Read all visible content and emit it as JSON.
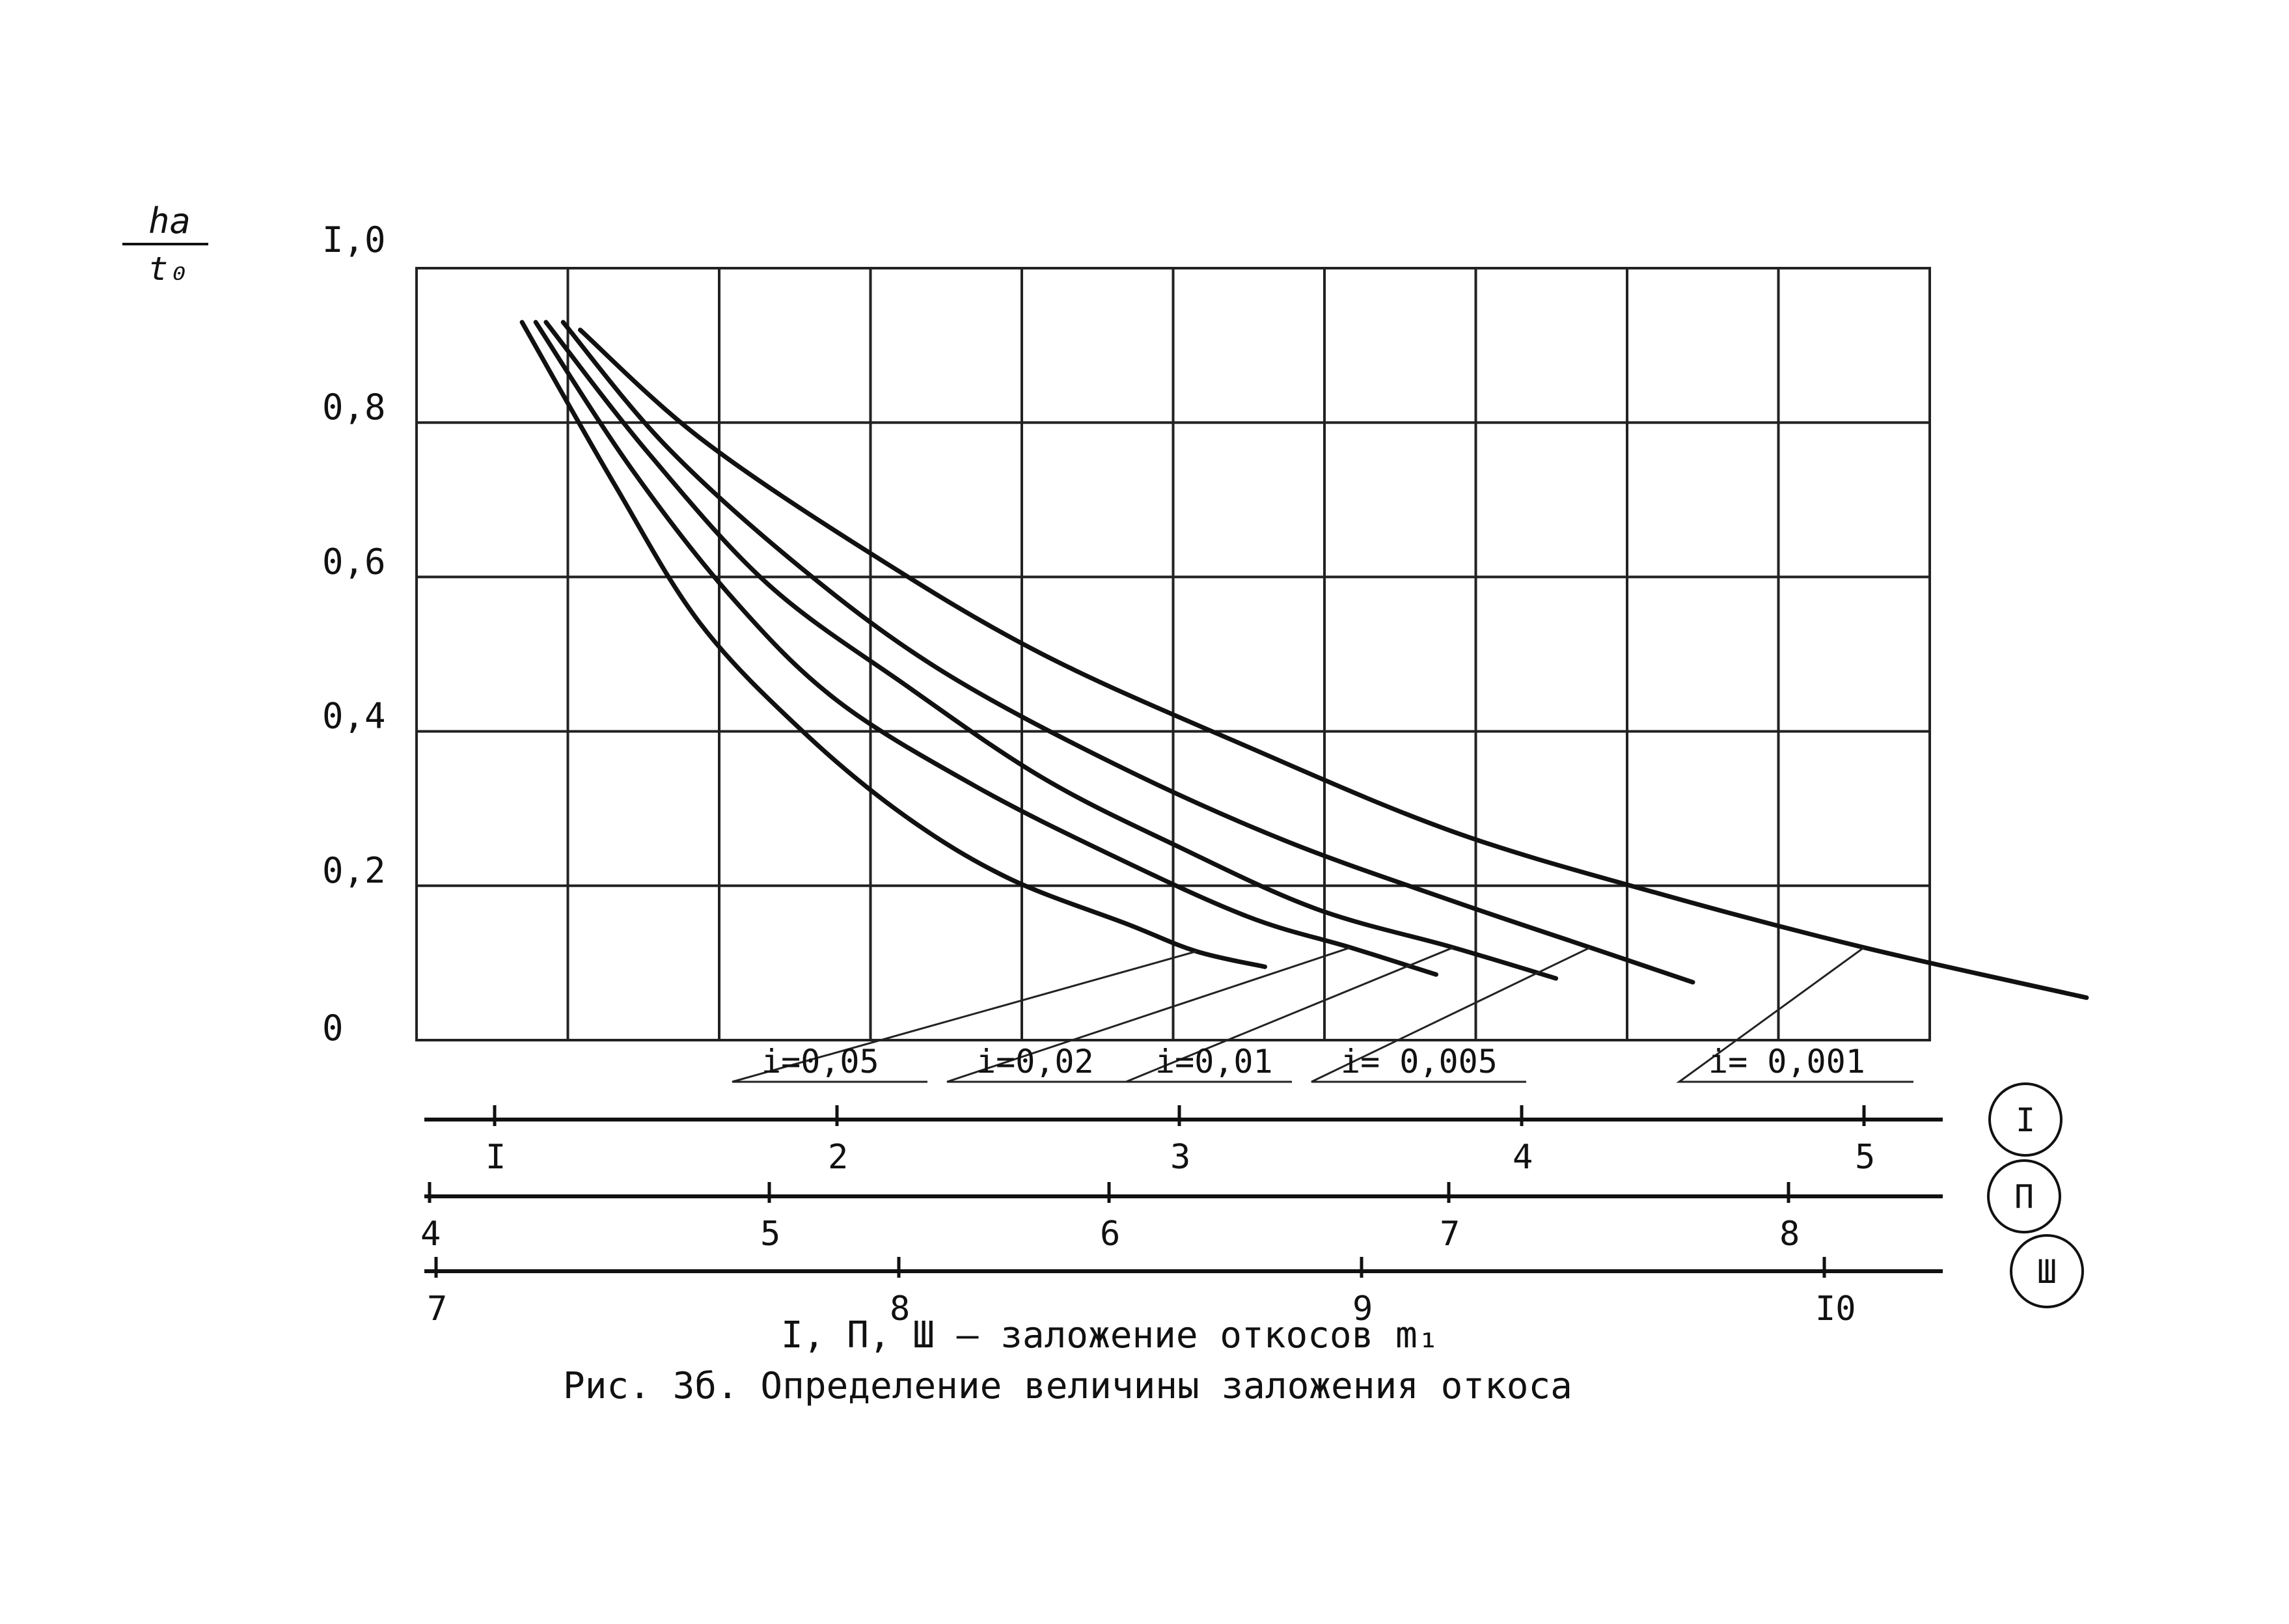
{
  "y_axis_symbol": {
    "numerator": "hа",
    "denominator": "t₀"
  },
  "chart_data": {
    "type": "line",
    "title": "",
    "ylabel": "hа / t₀",
    "xlabel": "I, П, Ш – заложение откосов m₁",
    "ylim": [
      0,
      1.0
    ],
    "xlim": [
      1,
      5
    ],
    "y_ticks": [
      "I,0",
      "0,8",
      "0,6",
      "0,4",
      "0,2",
      "0"
    ],
    "y_tick_values": [
      1.0,
      0.8,
      0.6,
      0.4,
      0.2,
      0
    ],
    "grid": true,
    "series": [
      {
        "name": "i=0,05",
        "x": [
          1.08,
          1.35,
          1.6,
          1.9,
          2.2,
          2.5,
          2.85,
          3.05,
          3.25
        ],
        "y": [
          0.93,
          0.72,
          0.54,
          0.4,
          0.29,
          0.21,
          0.15,
          0.115,
          0.095
        ]
      },
      {
        "name": "i=0,02",
        "x": [
          1.12,
          1.4,
          1.7,
          2.0,
          2.4,
          2.8,
          3.2,
          3.5,
          3.75
        ],
        "y": [
          0.93,
          0.74,
          0.57,
          0.44,
          0.33,
          0.24,
          0.16,
          0.12,
          0.085
        ]
      },
      {
        "name": "i=0,01",
        "x": [
          1.15,
          1.45,
          1.8,
          2.2,
          2.6,
          3.0,
          3.4,
          3.8,
          4.1
        ],
        "y": [
          0.93,
          0.76,
          0.59,
          0.46,
          0.34,
          0.25,
          0.17,
          0.12,
          0.08
        ]
      },
      {
        "name": "i= 0,005",
        "x": [
          1.2,
          1.5,
          1.9,
          2.3,
          2.8,
          3.3,
          3.8,
          4.2,
          4.5
        ],
        "y": [
          0.93,
          0.77,
          0.61,
          0.48,
          0.36,
          0.26,
          0.18,
          0.12,
          0.075
        ]
      },
      {
        "name": "i= 0,001",
        "x": [
          1.25,
          1.6,
          2.1,
          2.6,
          3.2,
          3.8,
          4.4,
          5.0,
          5.65
        ],
        "y": [
          0.92,
          0.78,
          0.63,
          0.5,
          0.38,
          0.27,
          0.19,
          0.12,
          0.055
        ]
      }
    ],
    "scales": [
      {
        "name": "I",
        "labels": [
          "I",
          "2",
          "3",
          "4",
          "5"
        ],
        "values": [
          1,
          2,
          3,
          4,
          5
        ]
      },
      {
        "name": "П",
        "labels": [
          "4",
          "5",
          "6",
          "7",
          "8"
        ],
        "values": [
          4,
          5,
          6,
          7,
          8
        ]
      },
      {
        "name": "Ш",
        "labels": [
          "7",
          "8",
          "9",
          "I0"
        ],
        "values": [
          7,
          8,
          9,
          10
        ]
      }
    ]
  },
  "caption": {
    "axis_note": "I, П, Ш – заложение откосов m₁",
    "figure": "Рис. 3б.  Определение величины заложения откоса"
  }
}
